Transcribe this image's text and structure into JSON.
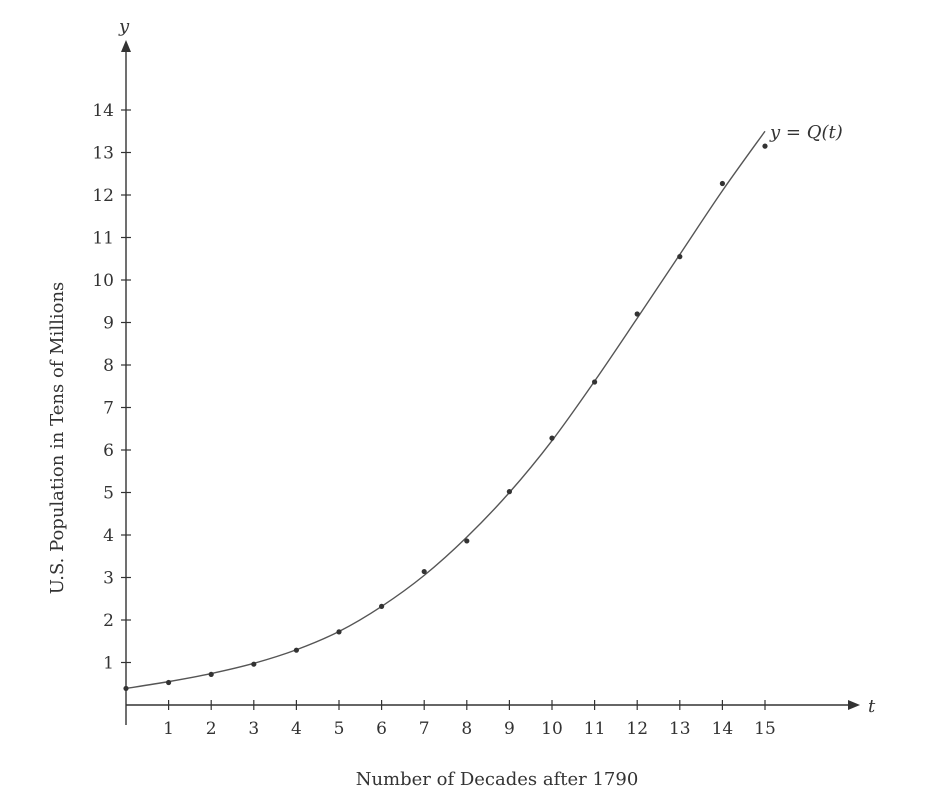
{
  "chart_data": {
    "type": "scatter",
    "xlabel": "Number of Decades after 1790",
    "ylabel": "U.S. Population in Tens of Millions",
    "x_axis_var": "t",
    "y_axis_var": "y",
    "curve_label": "y = Q(t)",
    "xlim": [
      0,
      15
    ],
    "ylim": [
      0,
      14
    ],
    "x_ticks": [
      1,
      2,
      3,
      4,
      5,
      6,
      7,
      8,
      9,
      10,
      11,
      12,
      13,
      14,
      15
    ],
    "y_ticks": [
      1,
      2,
      3,
      4,
      5,
      6,
      7,
      8,
      9,
      10,
      11,
      12,
      13,
      14
    ],
    "grid": false,
    "series": [
      {
        "points": [
          {
            "t": 0,
            "y": 0.39
          },
          {
            "t": 1,
            "y": 0.53
          },
          {
            "t": 2,
            "y": 0.72
          },
          {
            "t": 3,
            "y": 0.96
          },
          {
            "t": 4,
            "y": 1.29
          },
          {
            "t": 5,
            "y": 1.72
          },
          {
            "t": 6,
            "y": 2.32
          },
          {
            "t": 7,
            "y": 3.14
          },
          {
            "t": 8,
            "y": 3.86
          },
          {
            "t": 9,
            "y": 5.02
          },
          {
            "t": 10,
            "y": 6.28
          },
          {
            "t": 11,
            "y": 7.6
          },
          {
            "t": 12,
            "y": 9.2
          },
          {
            "t": 13,
            "y": 10.55
          },
          {
            "t": 14,
            "y": 12.27
          },
          {
            "t": 15,
            "y": 13.15
          }
        ]
      }
    ],
    "fitted_curve": [
      {
        "t": 0,
        "y": 0.39
      },
      {
        "t": 1,
        "y": 0.55
      },
      {
        "t": 2,
        "y": 0.74
      },
      {
        "t": 3,
        "y": 0.98
      },
      {
        "t": 4,
        "y": 1.3
      },
      {
        "t": 5,
        "y": 1.73
      },
      {
        "t": 6,
        "y": 2.32
      },
      {
        "t": 7,
        "y": 3.05
      },
      {
        "t": 8,
        "y": 3.95
      },
      {
        "t": 9,
        "y": 5.0
      },
      {
        "t": 10,
        "y": 6.22
      },
      {
        "t": 11,
        "y": 7.62
      },
      {
        "t": 12,
        "y": 9.1
      },
      {
        "t": 13,
        "y": 10.6
      },
      {
        "t": 14,
        "y": 12.1
      },
      {
        "t": 15,
        "y": 13.5
      }
    ]
  }
}
